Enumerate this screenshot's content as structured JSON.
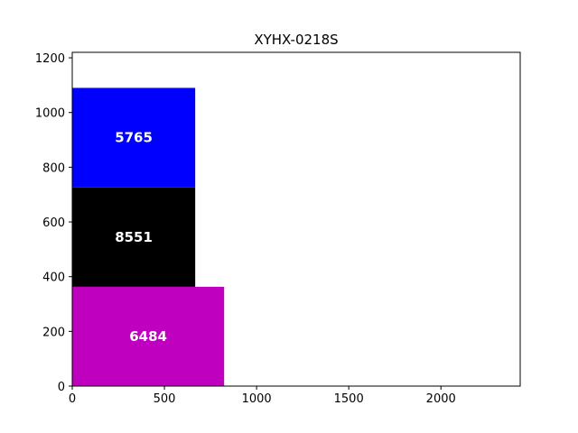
{
  "chart_data": {
    "type": "bar",
    "orientation": "stacked-rectangles",
    "title": "XYHX-0218S",
    "xlabel": "",
    "ylabel": "",
    "xlim": [
      0,
      2430
    ],
    "ylim": [
      0,
      1220
    ],
    "x_ticks": [
      "0",
      "500",
      "1000",
      "1500",
      "2000"
    ],
    "y_ticks": [
      "0",
      "200",
      "400",
      "600",
      "800",
      "1000",
      "1200"
    ],
    "grid": false,
    "rects": [
      {
        "label": "6484",
        "x": 0,
        "width": 824,
        "y": 0,
        "height": 363,
        "color": "#bf00bf"
      },
      {
        "label": "8551",
        "x": 0,
        "width": 667,
        "y": 363,
        "height": 363,
        "color": "#000000"
      },
      {
        "label": "5765",
        "x": 0,
        "width": 667,
        "y": 726,
        "height": 364,
        "color": "#0000ff"
      }
    ]
  }
}
